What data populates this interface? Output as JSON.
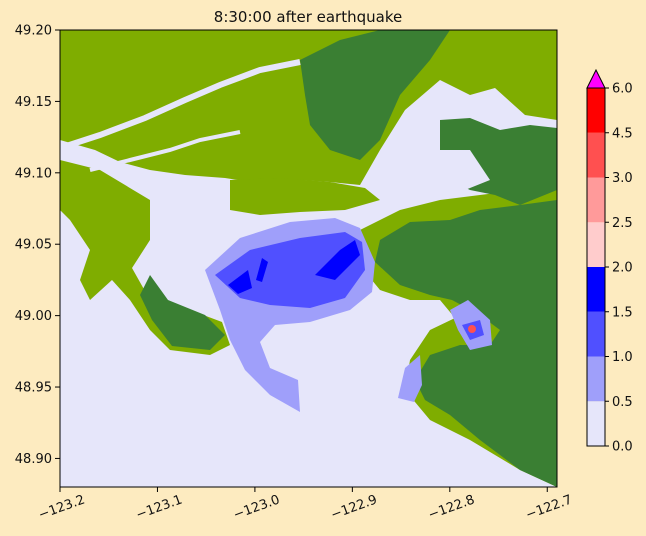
{
  "chart_data": {
    "type": "heatmap",
    "title": "8:30:00 after earthquake",
    "xlabel": "",
    "ylabel": "",
    "xlim": [
      -123.2,
      -122.69
    ],
    "ylim": [
      48.88,
      49.2
    ],
    "x_ticks": [
      "−123.2",
      "−123.1",
      "−123.0",
      "−122.9",
      "−122.8",
      "−122.7"
    ],
    "x_tick_values": [
      -123.2,
      -123.1,
      -123.0,
      -122.9,
      -122.8,
      -122.7
    ],
    "y_ticks": [
      "48.90",
      "48.95",
      "49.00",
      "49.05",
      "49.10",
      "49.15",
      "49.20"
    ],
    "y_tick_values": [
      48.9,
      48.95,
      49.0,
      49.05,
      49.1,
      49.15,
      49.2
    ],
    "colorbar": {
      "ticks": [
        "0.0",
        "0.5",
        "1.0",
        "1.5",
        "2.0",
        "2.5",
        "3.0",
        "4.5",
        "6.0"
      ],
      "levels": [
        0,
        0.5,
        1.0,
        1.5,
        2.0,
        2.5,
        3.0,
        4.5,
        6.0
      ],
      "colors": [
        "#e6e6fa",
        "#9f9ffa",
        "#5050ff",
        "#0000ff",
        "#ffcccc",
        "#ff9a9a",
        "#ff5050",
        "#ff0000"
      ],
      "extend_color": "#ff00ff"
    },
    "land_colors": {
      "low": "#7fad00",
      "high": "#3a7f33"
    },
    "water_color": "#e6e6fa"
  }
}
